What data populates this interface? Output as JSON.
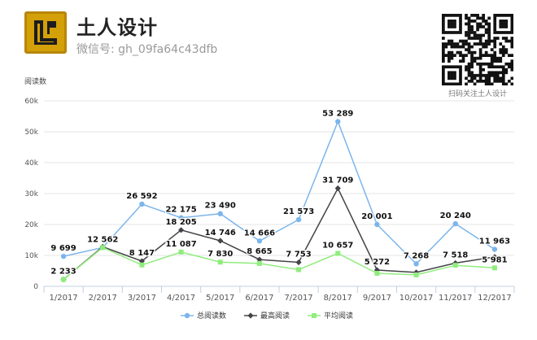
{
  "account": {
    "name": "土人设计",
    "id_text": "微信号: gh_09fa64c43dfb",
    "qr_caption": "扫码关注土人设计",
    "logo_icon": "tu-ren-seal-logo",
    "qr_icon": "qr-code"
  },
  "chart_data": {
    "type": "line",
    "ylabel": "阅读数",
    "xlabel": "",
    "ylim": [
      0,
      60000
    ],
    "yticks": [
      0,
      10000,
      20000,
      30000,
      40000,
      50000,
      60000
    ],
    "ytick_labels": [
      "0",
      "10k",
      "20k",
      "30k",
      "40k",
      "50k",
      "60k"
    ],
    "grid": true,
    "legend_position": "bottom-center",
    "categories": [
      "1/2017",
      "2/2017",
      "3/2017",
      "4/2017",
      "5/2017",
      "6/2017",
      "7/2017",
      "8/2017",
      "9/2017",
      "10/2017",
      "11/2017",
      "12/2017"
    ],
    "series": [
      {
        "name": "总阅读数",
        "color": "#7cb5ec",
        "marker": "circle",
        "values": [
          9699,
          12562,
          26592,
          22175,
          23490,
          14666,
          21573,
          53289,
          20001,
          7268,
          20240,
          11963
        ],
        "labels": [
          "9 699",
          "12 562",
          "26 592",
          "22 175",
          "23 490",
          "14 666",
          "21 573",
          "53 289",
          "20 001",
          "7 268",
          "20 240",
          "11 963"
        ]
      },
      {
        "name": "最高阅读",
        "color": "#434348",
        "marker": "diamond",
        "values": [
          2233,
          12800,
          8147,
          18205,
          14746,
          8665,
          7753,
          31709,
          5272,
          4500,
          7518,
          9500
        ],
        "labels": [
          "",
          "",
          "8 147",
          "18 205",
          "14 746",
          "8 665",
          "7 753",
          "31 709",
          "5 272",
          "",
          "7 518",
          ""
        ]
      },
      {
        "name": "平均阅读",
        "color": "#90ed7d",
        "marker": "square",
        "values": [
          2233,
          12562,
          6900,
          11087,
          7830,
          7400,
          5400,
          10657,
          4200,
          3700,
          6800,
          5981
        ],
        "labels": [
          "2 233",
          "",
          "",
          "11 087",
          "7 830",
          "",
          "",
          "10 657",
          "",
          "",
          "",
          "5 981"
        ]
      }
    ]
  }
}
